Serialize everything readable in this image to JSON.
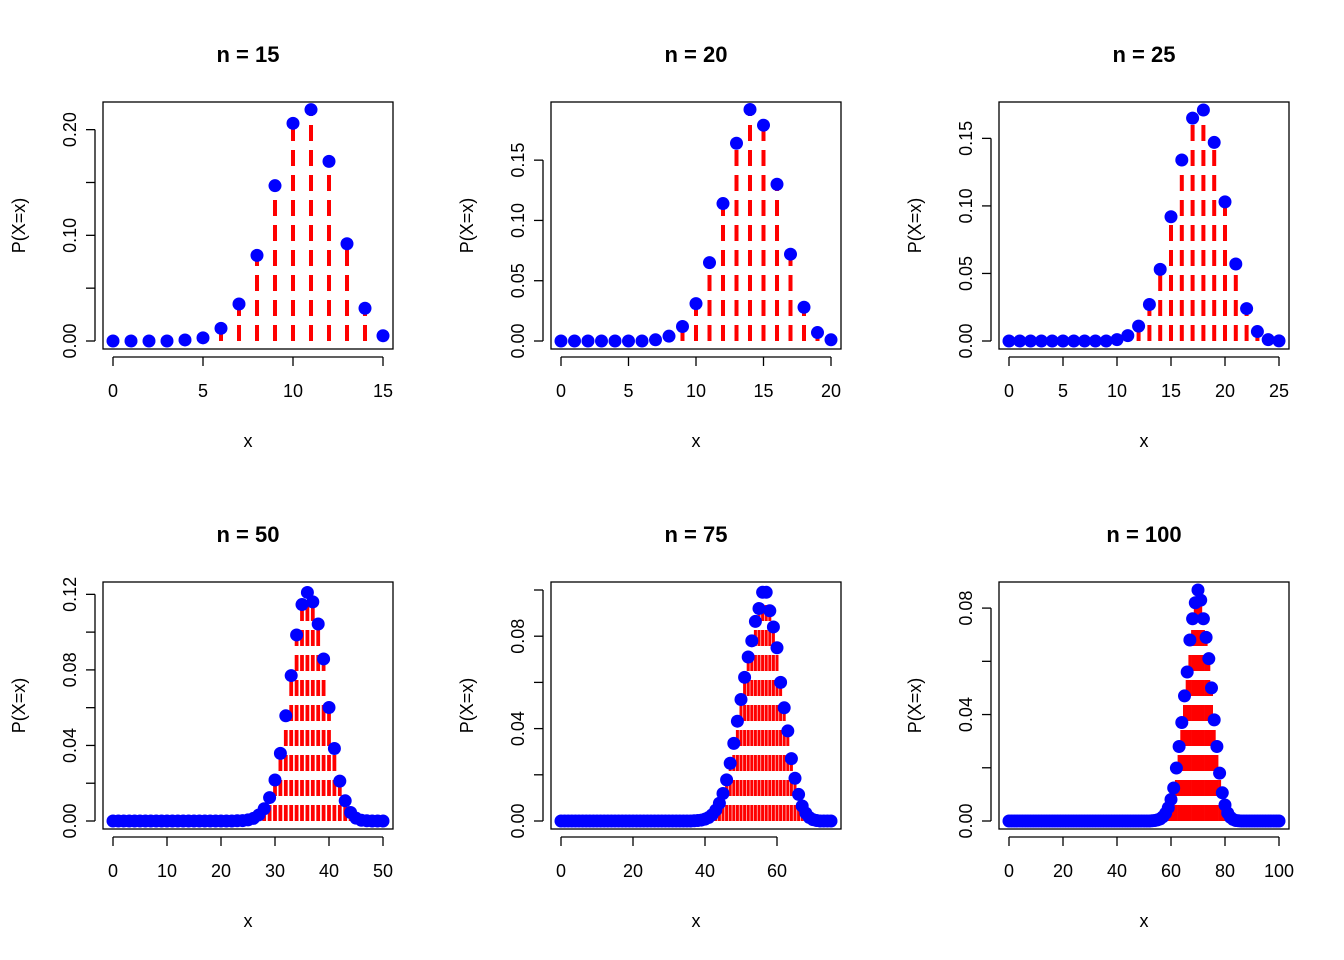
{
  "colors": {
    "stem": "#ff0000",
    "point": "#0000ff",
    "frame": "#000000"
  },
  "chart_data": [
    {
      "type": "scatter",
      "title": "n =  15",
      "xlabel": "x",
      "ylabel": "P(X=x)",
      "xlim": [
        0,
        15
      ],
      "ylim": [
        0,
        0.2186
      ],
      "xticks": [
        0,
        5,
        10,
        15
      ],
      "yticks": [
        0,
        0.1,
        0.2
      ],
      "ytick_labels": [
        "0.00",
        "0.10",
        "0.20"
      ],
      "ytick_minor": [
        0.05,
        0.15
      ],
      "x": [
        0,
        1,
        2,
        3,
        4,
        5,
        6,
        7,
        8,
        9,
        10,
        11,
        12,
        13,
        14,
        15
      ],
      "values": [
        0,
        0,
        0,
        0,
        0.001,
        0.003,
        0.012,
        0.035,
        0.081,
        0.147,
        0.206,
        0.219,
        0.17,
        0.092,
        0.031,
        0.005
      ]
    },
    {
      "type": "scatter",
      "title": "n =  20",
      "xlabel": "x",
      "ylabel": "P(X=x)",
      "xlim": [
        0,
        20
      ],
      "ylim": [
        0,
        0.1916
      ],
      "xticks": [
        0,
        5,
        10,
        15,
        20
      ],
      "yticks": [
        0,
        0.05,
        0.1,
        0.15
      ],
      "ytick_labels": [
        "0.00",
        "0.05",
        "0.10",
        "0.15"
      ],
      "ytick_minor": [],
      "x": [
        0,
        1,
        2,
        3,
        4,
        5,
        6,
        7,
        8,
        9,
        10,
        11,
        12,
        13,
        14,
        15,
        16,
        17,
        18,
        19,
        20
      ],
      "values": [
        0,
        0,
        0,
        0,
        0,
        0,
        0,
        0.001,
        0.004,
        0.012,
        0.031,
        0.065,
        0.114,
        0.164,
        0.192,
        0.179,
        0.13,
        0.072,
        0.028,
        0.007,
        0.001
      ]
    },
    {
      "type": "scatter",
      "title": "n =  25",
      "xlabel": "x",
      "ylabel": "P(X=x)",
      "xlim": [
        0,
        25
      ],
      "ylim": [
        0,
        0.171
      ],
      "xticks": [
        0,
        5,
        10,
        15,
        20,
        25
      ],
      "yticks": [
        0,
        0.05,
        0.1,
        0.15
      ],
      "ytick_labels": [
        "0.00",
        "0.05",
        "0.10",
        "0.15"
      ],
      "ytick_minor": [],
      "x": [
        0,
        1,
        2,
        3,
        4,
        5,
        6,
        7,
        8,
        9,
        10,
        11,
        12,
        13,
        14,
        15,
        16,
        17,
        18,
        19,
        20,
        21,
        22,
        23,
        24,
        25
      ],
      "values": [
        0,
        0,
        0,
        0,
        0,
        0,
        0,
        0,
        0,
        0,
        0.001,
        0.004,
        0.011,
        0.027,
        0.053,
        0.092,
        0.134,
        0.165,
        0.171,
        0.147,
        0.103,
        0.057,
        0.024,
        0.007,
        0.001,
        0.0001
      ]
    },
    {
      "type": "scatter",
      "title": "n =  50",
      "xlabel": "x",
      "ylabel": "P(X=x)",
      "xlim": [
        0,
        50
      ],
      "ylim": [
        0,
        0.1223
      ],
      "xticks": [
        0,
        10,
        20,
        30,
        40,
        50
      ],
      "yticks": [
        0,
        0.04,
        0.08,
        0.12
      ],
      "ytick_labels": [
        "0.00",
        "0.04",
        "0.08",
        "0.12"
      ],
      "ytick_minor": [
        0.02,
        0.06,
        0.1
      ],
      "x": [
        0,
        1,
        2,
        3,
        4,
        5,
        6,
        7,
        8,
        9,
        10,
        11,
        12,
        13,
        14,
        15,
        16,
        17,
        18,
        19,
        20,
        21,
        22,
        23,
        24,
        25,
        26,
        27,
        28,
        29,
        30,
        31,
        32,
        33,
        34,
        35,
        36,
        37,
        38,
        39,
        40,
        41,
        42,
        43,
        44,
        45,
        46,
        47,
        48,
        49,
        50
      ],
      "values": [
        0,
        0,
        0,
        0,
        0,
        0,
        0,
        0,
        0,
        0,
        0,
        0,
        0,
        0,
        0,
        0,
        0,
        0,
        0,
        0,
        0,
        0,
        0,
        0.0001,
        0.0002,
        0.0006,
        0.0014,
        0.0032,
        0.0065,
        0.0124,
        0.0217,
        0.0358,
        0.0557,
        0.077,
        0.0985,
        0.1146,
        0.121,
        0.116,
        0.1043,
        0.0858,
        0.0601,
        0.0384,
        0.0211,
        0.0107,
        0.0045,
        0.0015,
        0.0004,
        0.0001,
        0,
        0,
        0
      ]
    },
    {
      "type": "scatter",
      "title": "n =  75",
      "xlabel": "x",
      "ylabel": "P(X=x)",
      "xlim": [
        0,
        75
      ],
      "ylim": [
        0,
        0.1
      ],
      "xticks": [
        0,
        20,
        40,
        60
      ],
      "yticks": [
        0,
        0.04,
        0.08
      ],
      "ytick_labels": [
        "0.00",
        "0.04",
        "0.08"
      ],
      "ytick_minor": [
        0.02,
        0.06,
        0.1
      ],
      "x": [
        0,
        1,
        2,
        3,
        4,
        5,
        6,
        7,
        8,
        9,
        10,
        11,
        12,
        13,
        14,
        15,
        16,
        17,
        18,
        19,
        20,
        21,
        22,
        23,
        24,
        25,
        26,
        27,
        28,
        29,
        30,
        31,
        32,
        33,
        34,
        35,
        36,
        37,
        38,
        39,
        40,
        41,
        42,
        43,
        44,
        45,
        46,
        47,
        48,
        49,
        50,
        51,
        52,
        53,
        54,
        55,
        56,
        57,
        58,
        59,
        60,
        61,
        62,
        63,
        64,
        65,
        66,
        67,
        68,
        69,
        70,
        71,
        72,
        73,
        74,
        75
      ],
      "values": [
        0,
        0,
        0,
        0,
        0,
        0,
        0,
        0,
        0,
        0,
        0,
        0,
        0,
        0,
        0,
        0,
        0,
        0,
        0,
        0,
        0,
        0,
        0,
        0,
        0,
        0,
        0,
        0,
        0,
        0,
        0,
        0,
        0,
        0,
        0,
        0,
        0,
        0.0001,
        0.0002,
        0.0004,
        0.0008,
        0.0015,
        0.0027,
        0.0047,
        0.0077,
        0.0119,
        0.0178,
        0.025,
        0.0336,
        0.0432,
        0.0526,
        0.0622,
        0.071,
        0.078,
        0.0864,
        0.092,
        0.099,
        0.099,
        0.091,
        0.084,
        0.075,
        0.06,
        0.049,
        0.039,
        0.027,
        0.0185,
        0.0115,
        0.0065,
        0.0034,
        0.0015,
        0.0006,
        0.0002,
        0,
        0,
        0,
        0
      ]
    },
    {
      "type": "scatter",
      "title": "n =  100",
      "xlabel": "x",
      "ylabel": "P(X=x)",
      "xlim": [
        0,
        100
      ],
      "ylim": [
        0,
        0.0868
      ],
      "xticks": [
        0,
        20,
        40,
        60,
        80,
        100
      ],
      "yticks": [
        0,
        0.04,
        0.08
      ],
      "ytick_labels": [
        "0.00",
        "0.04",
        "0.08"
      ],
      "ytick_minor": [
        0.02,
        0.06
      ],
      "x": [
        0,
        1,
        2,
        3,
        4,
        5,
        6,
        7,
        8,
        9,
        10,
        11,
        12,
        13,
        14,
        15,
        16,
        17,
        18,
        19,
        20,
        21,
        22,
        23,
        24,
        25,
        26,
        27,
        28,
        29,
        30,
        31,
        32,
        33,
        34,
        35,
        36,
        37,
        38,
        39,
        40,
        41,
        42,
        43,
        44,
        45,
        46,
        47,
        48,
        49,
        50,
        51,
        52,
        53,
        54,
        55,
        56,
        57,
        58,
        59,
        60,
        61,
        62,
        63,
        64,
        65,
        66,
        67,
        68,
        69,
        70,
        71,
        72,
        73,
        74,
        75,
        76,
        77,
        78,
        79,
        80,
        81,
        82,
        83,
        84,
        85,
        86,
        87,
        88,
        89,
        90,
        91,
        92,
        93,
        94,
        95,
        96,
        97,
        98,
        99,
        100
      ],
      "values": [
        0,
        0,
        0,
        0,
        0,
        0,
        0,
        0,
        0,
        0,
        0,
        0,
        0,
        0,
        0,
        0,
        0,
        0,
        0,
        0,
        0,
        0,
        0,
        0,
        0,
        0,
        0,
        0,
        0,
        0,
        0,
        0,
        0,
        0,
        0,
        0,
        0,
        0,
        0,
        0,
        0,
        0,
        0,
        0,
        0,
        0,
        0,
        0,
        0,
        0,
        0,
        0,
        0,
        0.0001,
        0.0002,
        0.0004,
        0.0008,
        0.0016,
        0.0029,
        0.005,
        0.0081,
        0.0124,
        0.0199,
        0.028,
        0.037,
        0.047,
        0.056,
        0.068,
        0.076,
        0.082,
        0.0868,
        0.083,
        0.076,
        0.069,
        0.061,
        0.05,
        0.038,
        0.028,
        0.018,
        0.0106,
        0.006,
        0.003,
        0.0014,
        0.0006,
        0.0002,
        0.0001,
        0,
        0,
        0,
        0,
        0,
        0,
        0,
        0,
        0,
        0,
        0,
        0,
        0,
        0,
        0
      ]
    }
  ]
}
